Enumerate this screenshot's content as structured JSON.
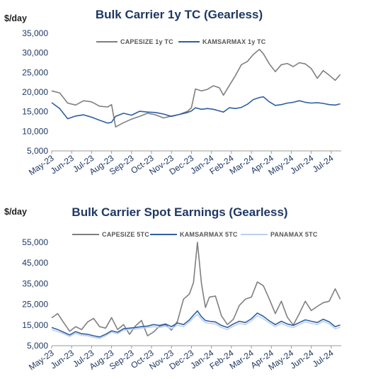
{
  "chart_data": [
    {
      "type": "line",
      "title": "Bulk Carrier 1y TC (Gearless)",
      "unit_label": "$/day",
      "ylim": [
        5000,
        35000
      ],
      "yticks": [
        "5,000",
        "10,000",
        "15,000",
        "20,000",
        "25,000",
        "30,000",
        "35,000"
      ],
      "ytick_values": [
        5000,
        10000,
        15000,
        20000,
        25000,
        30000,
        35000
      ],
      "x_range": [
        0,
        14.5
      ],
      "categories": [
        "May-23",
        "Jun-23",
        "Jul-23",
        "Aug-23",
        "Sep-23",
        "Oct-23",
        "Nov-23",
        "Dec-23",
        "Jan-24",
        "Feb-24",
        "Mar-24",
        "Apr-24",
        "May-24",
        "Jun-24",
        "Jul-24"
      ],
      "legend_position": "top-right",
      "series": [
        {
          "name": "CAPESIZE 1y TC",
          "color": "#7f7f7f",
          "x": [
            0,
            0.4,
            0.8,
            1.2,
            1.6,
            2.0,
            2.4,
            2.8,
            3.0,
            3.2,
            3.6,
            4.0,
            4.4,
            4.8,
            5.2,
            5.6,
            6.0,
            6.4,
            6.8,
            7.0,
            7.2,
            7.5,
            7.8,
            8.1,
            8.4,
            8.6,
            8.9,
            9.2,
            9.5,
            9.8,
            10.1,
            10.4,
            10.6,
            10.9,
            11.2,
            11.5,
            11.8,
            12.1,
            12.4,
            12.7,
            13.0,
            13.3,
            13.6,
            13.9,
            14.2,
            14.45
          ],
          "values": [
            20300,
            19800,
            17200,
            16700,
            17800,
            17500,
            16400,
            16200,
            16800,
            11100,
            12200,
            13100,
            13800,
            14600,
            14200,
            13400,
            13900,
            14300,
            15100,
            16000,
            20800,
            20300,
            20700,
            21600,
            21100,
            19200,
            21700,
            24200,
            27000,
            27800,
            29600,
            30900,
            29800,
            27200,
            25200,
            27000,
            27300,
            26500,
            27500,
            27200,
            26000,
            23500,
            25500,
            24300,
            23000,
            24500
          ]
        },
        {
          "name": "KAMSARMAX 1y TC",
          "color": "#2e5fa3",
          "x": [
            0,
            0.4,
            0.8,
            1.2,
            1.6,
            2.0,
            2.4,
            2.8,
            3.0,
            3.2,
            3.6,
            4.0,
            4.4,
            4.8,
            5.2,
            5.6,
            6.0,
            6.4,
            6.8,
            7.0,
            7.2,
            7.5,
            7.8,
            8.1,
            8.4,
            8.6,
            8.9,
            9.2,
            9.5,
            9.8,
            10.1,
            10.4,
            10.6,
            10.9,
            11.2,
            11.5,
            11.8,
            12.1,
            12.4,
            12.7,
            13.0,
            13.3,
            13.6,
            13.9,
            14.2,
            14.45
          ],
          "values": [
            17300,
            15800,
            13200,
            13900,
            14200,
            13600,
            12800,
            12100,
            12300,
            13800,
            14600,
            14100,
            15100,
            14900,
            14800,
            14400,
            13800,
            14300,
            14800,
            15200,
            16000,
            15600,
            15800,
            15600,
            15200,
            14900,
            16000,
            15800,
            16100,
            16900,
            18100,
            18600,
            18800,
            17500,
            16600,
            16800,
            17200,
            17400,
            17800,
            17400,
            17200,
            17300,
            17100,
            16800,
            16700,
            17000
          ]
        }
      ]
    },
    {
      "type": "line",
      "title": "Bulk Carrier Spot Earnings (Gearless)",
      "unit_label": "$/day",
      "ylim": [
        5000,
        55000
      ],
      "yticks": [
        "5,000",
        "15,000",
        "25,000",
        "35,000",
        "45,000",
        "55,000"
      ],
      "ytick_values": [
        5000,
        15000,
        25000,
        35000,
        45000,
        55000
      ],
      "x_range": [
        0,
        14.5
      ],
      "categories": [
        "May-23",
        "Jun-23",
        "Jul-23",
        "Aug-23",
        "Sep-23",
        "Oct-23",
        "Nov-23",
        "Dec-23",
        "Jan-24",
        "Feb-24",
        "Mar-24",
        "Apr-24",
        "May-24",
        "Jun-24",
        "Jul-24"
      ],
      "legend_position": "top",
      "series": [
        {
          "name": "CAPESIZE 5TC",
          "color": "#7f7f7f",
          "x": [
            0,
            0.3,
            0.6,
            0.9,
            1.2,
            1.5,
            1.8,
            2.1,
            2.4,
            2.7,
            3.0,
            3.3,
            3.6,
            3.9,
            4.2,
            4.5,
            4.8,
            5.1,
            5.4,
            5.7,
            6.0,
            6.3,
            6.6,
            6.9,
            7.1,
            7.3,
            7.5,
            7.7,
            7.9,
            8.2,
            8.5,
            8.8,
            9.1,
            9.4,
            9.7,
            10.0,
            10.3,
            10.6,
            10.9,
            11.2,
            11.5,
            11.8,
            12.1,
            12.4,
            12.7,
            13.0,
            13.3,
            13.6,
            13.9,
            14.2,
            14.45
          ],
          "values": [
            18500,
            20500,
            16200,
            12000,
            14200,
            12800,
            16500,
            18200,
            14200,
            13500,
            18600,
            12800,
            15200,
            10500,
            14600,
            17200,
            9800,
            11600,
            14500,
            15200,
            12500,
            16800,
            27500,
            30000,
            35500,
            55000,
            35000,
            23500,
            28500,
            29000,
            19500,
            15200,
            17800,
            24500,
            27500,
            28500,
            35800,
            34000,
            27500,
            20500,
            26500,
            18800,
            15000,
            20500,
            26500,
            22000,
            24000,
            25800,
            26500,
            32500,
            27500
          ]
        },
        {
          "name": "KAMSARMAX 5TC",
          "color": "#2e5fa3",
          "x": [
            0,
            0.3,
            0.6,
            0.9,
            1.2,
            1.5,
            1.8,
            2.1,
            2.4,
            2.7,
            3.0,
            3.3,
            3.6,
            3.9,
            4.2,
            4.5,
            4.8,
            5.1,
            5.4,
            5.7,
            6.0,
            6.3,
            6.6,
            6.9,
            7.1,
            7.3,
            7.5,
            7.7,
            7.9,
            8.2,
            8.5,
            8.8,
            9.1,
            9.4,
            9.7,
            10.0,
            10.3,
            10.6,
            10.9,
            11.2,
            11.5,
            11.8,
            12.1,
            12.4,
            12.7,
            13.0,
            13.3,
            13.6,
            13.9,
            14.2,
            14.45
          ],
          "values": [
            13800,
            12800,
            11500,
            10200,
            11800,
            10800,
            10500,
            9800,
            9200,
            10500,
            12200,
            11500,
            13200,
            13500,
            13800,
            14200,
            14500,
            15200,
            14800,
            15500,
            14200,
            16000,
            15200,
            17500,
            19800,
            21800,
            19000,
            17200,
            16800,
            16500,
            14800,
            13800,
            15500,
            16800,
            16200,
            18000,
            20800,
            19200,
            17000,
            15200,
            16800,
            15500,
            14800,
            16200,
            17500,
            16800,
            16200,
            17800,
            16500,
            14200,
            15000
          ]
        },
        {
          "name": "PANAMAX 5TC",
          "color": "#bcd0ec",
          "x": [
            0,
            0.3,
            0.6,
            0.9,
            1.2,
            1.5,
            1.8,
            2.1,
            2.4,
            2.7,
            3.0,
            3.3,
            3.6,
            3.9,
            4.2,
            4.5,
            4.8,
            5.1,
            5.4,
            5.7,
            6.0,
            6.3,
            6.6,
            6.9,
            7.1,
            7.3,
            7.5,
            7.7,
            7.9,
            8.2,
            8.5,
            8.8,
            9.1,
            9.4,
            9.7,
            10.0,
            10.3,
            10.6,
            10.9,
            11.2,
            11.5,
            11.8,
            12.1,
            12.4,
            12.7,
            13.0,
            13.3,
            13.6,
            13.9,
            14.2,
            14.45
          ],
          "values": [
            12800,
            11800,
            10800,
            9500,
            11000,
            10000,
            9800,
            9000,
            8500,
            9800,
            11500,
            10800,
            12500,
            12800,
            13000,
            13500,
            13800,
            14200,
            13800,
            14500,
            13200,
            15000,
            14200,
            16500,
            18500,
            20200,
            17800,
            16200,
            15800,
            15500,
            13800,
            12800,
            14500,
            15800,
            15200,
            17000,
            19500,
            18000,
            16000,
            14200,
            15800,
            14500,
            13800,
            15200,
            16500,
            15800,
            15200,
            16800,
            15500,
            13200,
            14000
          ]
        }
      ]
    }
  ]
}
